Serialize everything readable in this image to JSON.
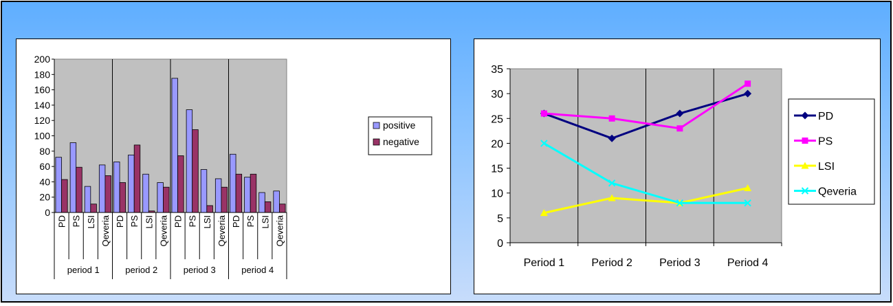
{
  "chart_data": [
    {
      "type": "bar",
      "groups": [
        "period 1",
        "period 2",
        "period 3",
        "period 4"
      ],
      "categories": [
        "PD",
        "PS",
        "LSI",
        "Qeveria"
      ],
      "ylim": [
        0,
        200
      ],
      "yticks": [
        0,
        20,
        40,
        60,
        80,
        100,
        120,
        140,
        160,
        180,
        200
      ],
      "grid": false,
      "legend_position": "right",
      "series": [
        {
          "name": "positive",
          "color": "#9999ff",
          "values": [
            [
              72,
              91,
              34,
              62
            ],
            [
              66,
              75,
              50,
              39
            ],
            [
              175,
              134,
              56,
              44
            ],
            [
              76,
              46,
              26,
              28
            ]
          ]
        },
        {
          "name": "negative",
          "color": "#993366",
          "values": [
            [
              43,
              59,
              11,
              48
            ],
            [
              39,
              88,
              2,
              33
            ],
            [
              74,
              108,
              9,
              33
            ],
            [
              50,
              50,
              14,
              11
            ]
          ]
        }
      ]
    },
    {
      "type": "line",
      "categories": [
        "Period 1",
        "Period 2",
        "Period 3",
        "Period 4"
      ],
      "ylim": [
        0,
        35
      ],
      "yticks": [
        0,
        5,
        10,
        15,
        20,
        25,
        30,
        35
      ],
      "grid": "vertical",
      "legend_position": "right",
      "series": [
        {
          "name": "PD",
          "color": "#000080",
          "marker": "diamond",
          "values": [
            26,
            21,
            26,
            30
          ]
        },
        {
          "name": "PS",
          "color": "#ff00ff",
          "marker": "square",
          "values": [
            26,
            25,
            23,
            32
          ]
        },
        {
          "name": "LSI",
          "color": "#ffff00",
          "marker": "triangle",
          "values": [
            6,
            9,
            8,
            11
          ]
        },
        {
          "name": "Qeveria",
          "color": "#00ffff",
          "marker": "x",
          "values": [
            20,
            12,
            8,
            8
          ]
        }
      ]
    }
  ]
}
